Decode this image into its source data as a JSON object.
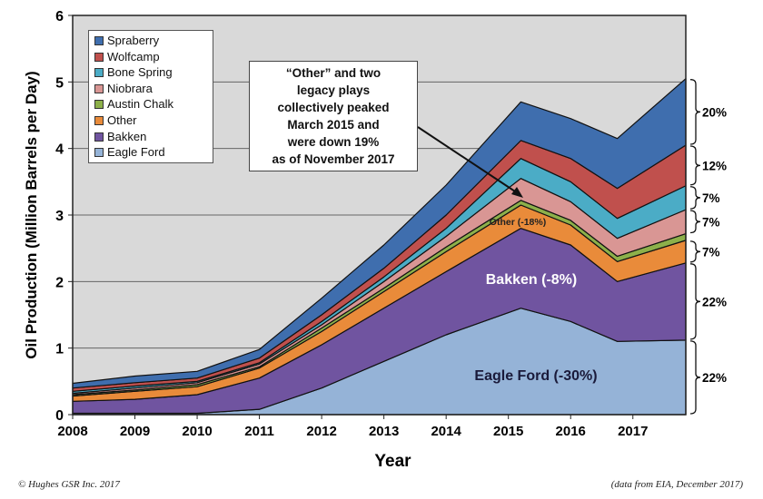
{
  "chart_data": {
    "type": "area",
    "stacked": true,
    "xlabel": "Year",
    "ylabel": "Oil Production (Million Barrels per Day)",
    "xlim": [
      2008,
      2017.85
    ],
    "ylim": [
      0,
      6
    ],
    "xticks": [
      "2008",
      "2009",
      "2010",
      "2011",
      "2012",
      "2013",
      "2014",
      "2015",
      "2016",
      "2017"
    ],
    "yticks": [
      "0",
      "1",
      "2",
      "3",
      "4",
      "5",
      "6"
    ],
    "grid": "horizontal",
    "legend_position": "top-left",
    "plot_background": "#d9d9d9",
    "x": [
      2008,
      2009,
      2010,
      2011,
      2012,
      2013,
      2014,
      2015.2,
      2016,
      2016.75,
      2017.85
    ],
    "series": [
      {
        "name": "Eagle Ford",
        "color": "#95b3d7",
        "values": [
          0.02,
          0.02,
          0.02,
          0.08,
          0.4,
          0.8,
          1.2,
          1.6,
          1.4,
          1.1,
          1.12
        ]
      },
      {
        "name": "Bakken",
        "color": "#7054a0",
        "values": [
          0.18,
          0.21,
          0.28,
          0.47,
          0.65,
          0.8,
          0.95,
          1.2,
          1.15,
          0.9,
          1.16
        ]
      },
      {
        "name": "Other",
        "color": "#e98b3a",
        "values": [
          0.08,
          0.12,
          0.12,
          0.15,
          0.2,
          0.25,
          0.3,
          0.35,
          0.3,
          0.3,
          0.34
        ]
      },
      {
        "name": "Austin Chalk",
        "color": "#8db04a",
        "values": [
          0.02,
          0.02,
          0.03,
          0.02,
          0.05,
          0.05,
          0.07,
          0.07,
          0.07,
          0.08,
          0.1
        ]
      },
      {
        "name": "Niobrara",
        "color": "#d99694",
        "values": [
          0.02,
          0.03,
          0.03,
          0.04,
          0.05,
          0.1,
          0.16,
          0.33,
          0.28,
          0.27,
          0.36
        ]
      },
      {
        "name": "Bone Spring",
        "color": "#4bacc6",
        "values": [
          0.03,
          0.03,
          0.02,
          0.02,
          0.05,
          0.07,
          0.12,
          0.3,
          0.3,
          0.3,
          0.36
        ]
      },
      {
        "name": "Wolfcamp",
        "color": "#c0504d",
        "values": [
          0.05,
          0.05,
          0.05,
          0.07,
          0.1,
          0.13,
          0.2,
          0.27,
          0.35,
          0.45,
          0.61
        ]
      },
      {
        "name": "Spraberry",
        "color": "#3f6eae",
        "values": [
          0.07,
          0.1,
          0.1,
          0.13,
          0.25,
          0.35,
          0.45,
          0.58,
          0.6,
          0.75,
          1.0
        ]
      }
    ],
    "legend": [
      "Spraberry",
      "Wolfcamp",
      "Bone Spring",
      "Niobrara",
      "Austin Chalk",
      "Other",
      "Bakken",
      "Eagle Ford"
    ],
    "area_labels": {
      "eagle_ford": "Eagle Ford (-30%)",
      "bakken": "Bakken (-8%)",
      "other": "Other (-18%)"
    },
    "annotation": [
      "“Other” and two",
      "legacy plays",
      "collectively peaked",
      "March 2015 and",
      "were down 19%",
      "as of November 2017"
    ],
    "share_brackets": [
      {
        "label": "20%",
        "range": [
          4.05,
          5.05
        ]
      },
      {
        "label": "12%",
        "range": [
          3.44,
          4.05
        ]
      },
      {
        "label": "7%",
        "range": [
          3.08,
          3.44
        ]
      },
      {
        "label": "7%",
        "range": [
          2.72,
          3.08
        ]
      },
      {
        "label": "7%",
        "range": [
          2.28,
          2.62
        ]
      },
      {
        "label": "22%",
        "range": [
          1.12,
          2.28
        ]
      },
      {
        "label": "22%",
        "range": [
          0,
          1.12
        ]
      }
    ]
  },
  "footer": {
    "copyright": "©  Hughes GSR Inc. 2017",
    "source": "(data from EIA, December 2017)"
  }
}
